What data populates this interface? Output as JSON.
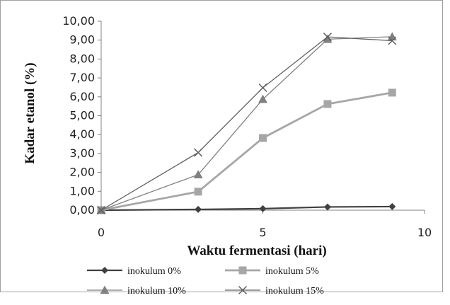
{
  "chart_data": {
    "type": "line",
    "title": "",
    "xlabel": "Waktu fermentasi (hari)",
    "ylabel": "Kadar etanol (%)",
    "xlim": [
      0,
      10
    ],
    "ylim": [
      0,
      10
    ],
    "x_ticks": [
      "0",
      "5",
      "10"
    ],
    "y_ticks": [
      "0,00",
      "1,00",
      "2,00",
      "3,00",
      "4,00",
      "5,00",
      "6,00",
      "7,00",
      "8,00",
      "9,00",
      "10,00"
    ],
    "grid": false,
    "legend_position": "bottom",
    "series": [
      {
        "name": "inokulum 0%",
        "color": "#404040",
        "marker": "diamond",
        "x": [
          0,
          3,
          5,
          7,
          9
        ],
        "y": [
          0.0,
          0.04,
          0.08,
          0.17,
          0.19
        ]
      },
      {
        "name": "inokulum 5%",
        "color": "#a6a6a6",
        "marker": "square",
        "x": [
          0,
          3,
          5,
          7,
          9
        ],
        "y": [
          0.0,
          0.98,
          3.82,
          5.62,
          6.22
        ]
      },
      {
        "name": "inokulum 10%",
        "color": "#808080",
        "marker": "triangle",
        "x": [
          0,
          3,
          5,
          7,
          9
        ],
        "y": [
          0.0,
          1.88,
          5.87,
          9.05,
          9.18
        ]
      },
      {
        "name": "inokulum 15%",
        "color": "#606060",
        "marker": "x",
        "x": [
          0,
          3,
          5,
          7,
          9
        ],
        "y": [
          0.0,
          3.05,
          6.48,
          9.17,
          8.97
        ]
      }
    ]
  }
}
